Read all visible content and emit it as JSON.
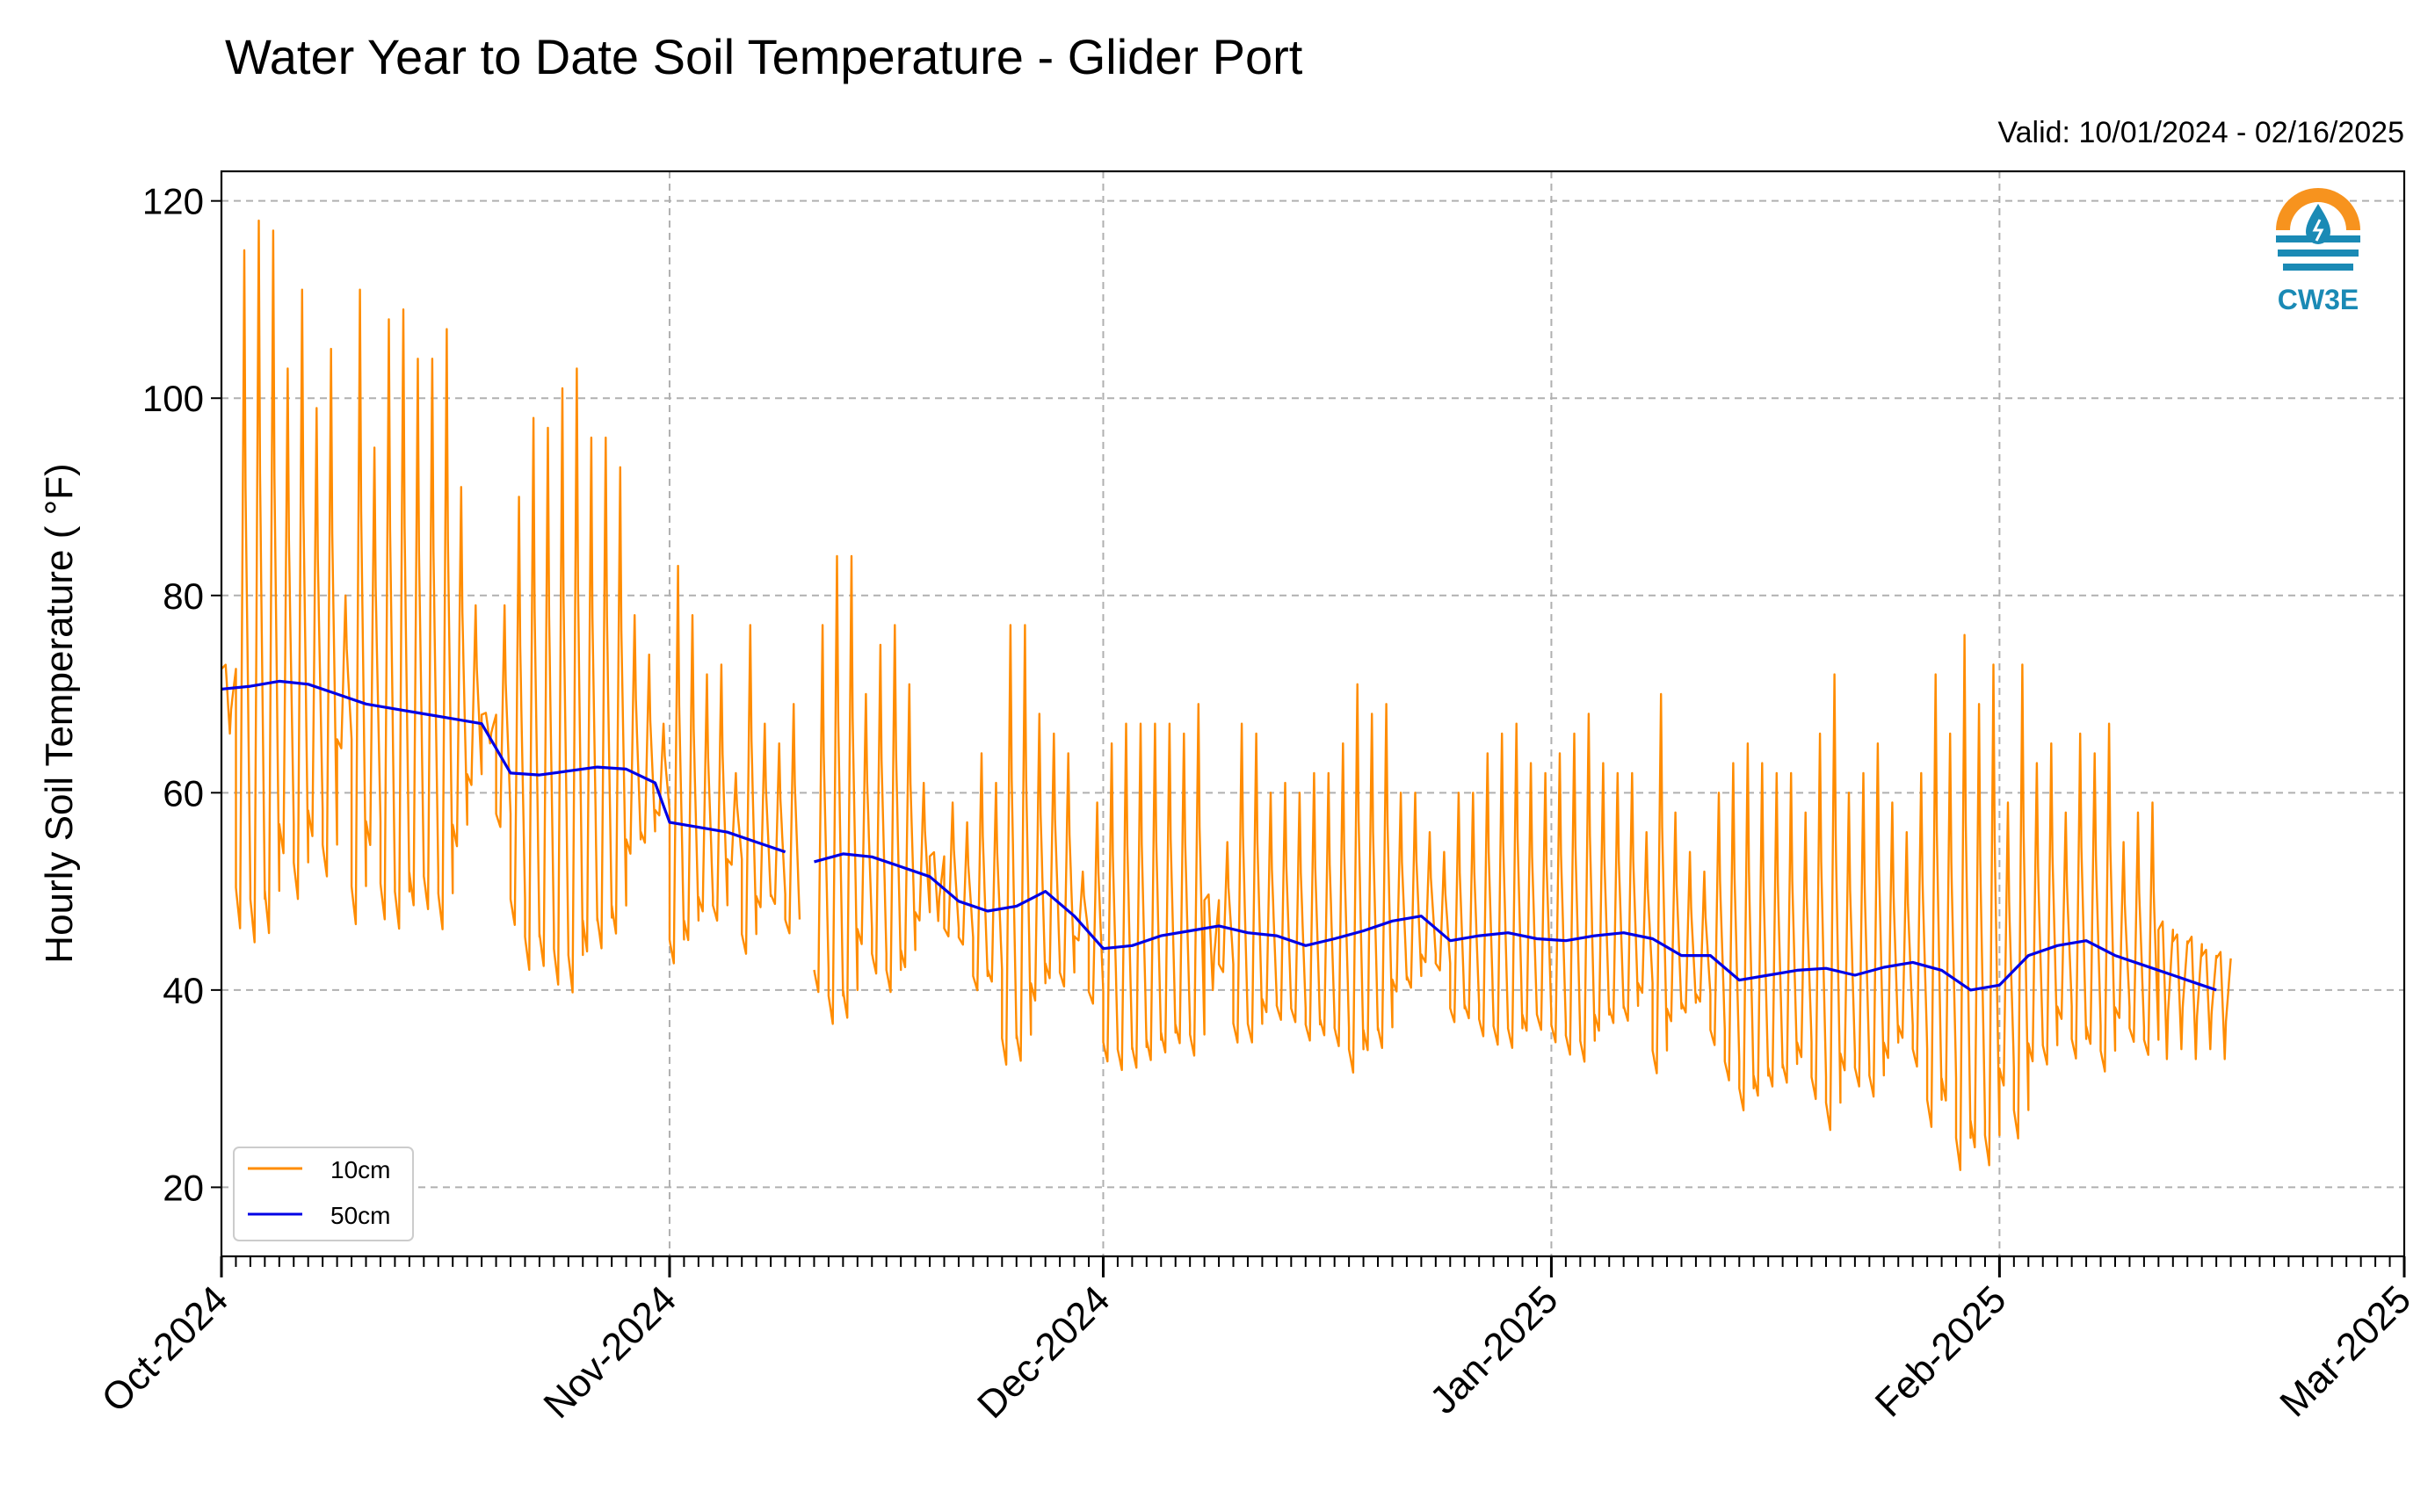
{
  "chart_data": {
    "type": "line",
    "title": "Water Year to Date Soil Temperature - Glider Port",
    "subtitle": "Valid: 10/01/2024 - 02/16/2025",
    "ylabel": "Hourly Soil Temperature ( °F)",
    "xlabel": "",
    "xlim": [
      "2024-10-01",
      "2025-03-01"
    ],
    "ylim": [
      13,
      123
    ],
    "y_ticks": [
      20,
      40,
      60,
      80,
      100,
      120
    ],
    "x_ticks": [
      {
        "date": "2024-10-01",
        "label": "Oct-2024"
      },
      {
        "date": "2024-11-01",
        "label": "Nov-2024"
      },
      {
        "date": "2024-12-01",
        "label": "Dec-2024"
      },
      {
        "date": "2025-01-01",
        "label": "Jan-2025"
      },
      {
        "date": "2025-02-01",
        "label": "Feb-2025"
      },
      {
        "date": "2025-03-01",
        "label": "Mar-2025"
      }
    ],
    "grid": true,
    "legend_position": "lower-left",
    "series": [
      {
        "name": "10cm",
        "color": "#ff8c00",
        "points": [
          [
            "2024-10-01",
            66
          ],
          [
            "2024-10-02",
            115
          ],
          [
            "2024-10-03",
            118
          ],
          [
            "2024-10-04",
            117
          ],
          [
            "2024-10-05",
            103
          ],
          [
            "2024-10-06",
            111
          ],
          [
            "2024-10-07",
            99
          ],
          [
            "2024-10-08",
            105
          ],
          [
            "2024-10-09",
            80
          ],
          [
            "2024-10-10",
            111
          ],
          [
            "2024-10-11",
            95
          ],
          [
            "2024-10-12",
            108
          ],
          [
            "2024-10-13",
            109
          ],
          [
            "2024-10-14",
            104
          ],
          [
            "2024-10-15",
            104
          ],
          [
            "2024-10-16",
            107
          ],
          [
            "2024-10-17",
            91
          ],
          [
            "2024-10-18",
            79
          ],
          [
            "2024-10-19",
            65
          ],
          [
            "2024-10-20",
            79
          ],
          [
            "2024-10-21",
            90
          ],
          [
            "2024-10-22",
            98
          ],
          [
            "2024-10-23",
            97
          ],
          [
            "2024-10-24",
            101
          ],
          [
            "2024-10-25",
            103
          ],
          [
            "2024-10-26",
            96
          ],
          [
            "2024-10-27",
            96
          ],
          [
            "2024-10-28",
            93
          ],
          [
            "2024-10-29",
            78
          ],
          [
            "2024-10-30",
            74
          ],
          [
            "2024-10-31",
            67
          ],
          [
            "2024-11-01",
            83
          ],
          [
            "2024-11-02",
            78
          ],
          [
            "2024-11-03",
            72
          ],
          [
            "2024-11-04",
            73
          ],
          [
            "2024-11-05",
            62
          ],
          [
            "2024-11-06",
            77
          ],
          [
            "2024-11-07",
            67
          ],
          [
            "2024-11-08",
            65
          ],
          [
            "2024-11-09",
            69
          ],
          [
            "2024-11-10",
            null
          ],
          [
            "2024-11-11",
            77
          ],
          [
            "2024-11-12",
            84
          ],
          [
            "2024-11-13",
            84
          ],
          [
            "2024-11-14",
            70
          ],
          [
            "2024-11-15",
            75
          ],
          [
            "2024-11-16",
            77
          ],
          [
            "2024-11-17",
            71
          ],
          [
            "2024-11-18",
            61
          ],
          [
            "2024-11-19",
            47
          ],
          [
            "2024-11-20",
            59
          ],
          [
            "2024-11-21",
            57
          ],
          [
            "2024-11-22",
            64
          ],
          [
            "2024-11-23",
            61
          ],
          [
            "2024-11-24",
            77
          ],
          [
            "2024-11-25",
            77
          ],
          [
            "2024-11-26",
            68
          ],
          [
            "2024-11-27",
            66
          ],
          [
            "2024-11-28",
            64
          ],
          [
            "2024-11-29",
            52
          ],
          [
            "2024-11-30",
            59
          ],
          [
            "2024-12-01",
            65
          ],
          [
            "2024-12-02",
            67
          ],
          [
            "2024-12-03",
            67
          ],
          [
            "2024-12-04",
            67
          ],
          [
            "2024-12-05",
            67
          ],
          [
            "2024-12-06",
            66
          ],
          [
            "2024-12-07",
            69
          ],
          [
            "2024-12-08",
            40
          ],
          [
            "2024-12-09",
            55
          ],
          [
            "2024-12-10",
            67
          ],
          [
            "2024-12-11",
            66
          ],
          [
            "2024-12-12",
            60
          ],
          [
            "2024-12-13",
            61
          ],
          [
            "2024-12-14",
            60
          ],
          [
            "2024-12-15",
            62
          ],
          [
            "2024-12-16",
            62
          ],
          [
            "2024-12-17",
            65
          ],
          [
            "2024-12-18",
            71
          ],
          [
            "2024-12-19",
            68
          ],
          [
            "2024-12-20",
            69
          ],
          [
            "2024-12-21",
            60
          ],
          [
            "2024-12-22",
            60
          ],
          [
            "2024-12-23",
            56
          ],
          [
            "2024-12-24",
            54
          ],
          [
            "2024-12-25",
            60
          ],
          [
            "2024-12-26",
            60
          ],
          [
            "2024-12-27",
            64
          ],
          [
            "2024-12-28",
            66
          ],
          [
            "2024-12-29",
            67
          ],
          [
            "2024-12-30",
            63
          ],
          [
            "2024-12-31",
            62
          ],
          [
            "2025-01-01",
            64
          ],
          [
            "2025-01-02",
            66
          ],
          [
            "2025-01-03",
            68
          ],
          [
            "2025-01-04",
            63
          ],
          [
            "2025-01-05",
            62
          ],
          [
            "2025-01-06",
            62
          ],
          [
            "2025-01-07",
            56
          ],
          [
            "2025-01-08",
            70
          ],
          [
            "2025-01-09",
            58
          ],
          [
            "2025-01-10",
            54
          ],
          [
            "2025-01-11",
            52
          ],
          [
            "2025-01-12",
            60
          ],
          [
            "2025-01-13",
            63
          ],
          [
            "2025-01-14",
            65
          ],
          [
            "2025-01-15",
            63
          ],
          [
            "2025-01-16",
            62
          ],
          [
            "2025-01-17",
            62
          ],
          [
            "2025-01-18",
            58
          ],
          [
            "2025-01-19",
            66
          ],
          [
            "2025-01-20",
            72
          ],
          [
            "2025-01-21",
            60
          ],
          [
            "2025-01-22",
            62
          ],
          [
            "2025-01-23",
            65
          ],
          [
            "2025-01-24",
            59
          ],
          [
            "2025-01-25",
            56
          ],
          [
            "2025-01-26",
            62
          ],
          [
            "2025-01-27",
            72
          ],
          [
            "2025-01-28",
            66
          ],
          [
            "2025-01-29",
            76
          ],
          [
            "2025-01-30",
            69
          ],
          [
            "2025-01-31",
            73
          ],
          [
            "2025-02-01",
            59
          ],
          [
            "2025-02-02",
            73
          ],
          [
            "2025-02-03",
            63
          ],
          [
            "2025-02-04",
            65
          ],
          [
            "2025-02-05",
            58
          ],
          [
            "2025-02-06",
            66
          ],
          [
            "2025-02-07",
            64
          ],
          [
            "2025-02-08",
            67
          ],
          [
            "2025-02-09",
            55
          ],
          [
            "2025-02-10",
            58
          ],
          [
            "2025-02-11",
            59
          ],
          [
            "2025-02-12",
            33
          ],
          [
            "2025-02-13",
            34
          ],
          [
            "2025-02-14",
            33
          ],
          [
            "2025-02-15",
            34
          ],
          [
            "2025-02-16",
            33
          ]
        ]
      },
      {
        "name": "50cm",
        "color": "#0000e6",
        "points": [
          [
            "2024-10-01",
            70.5
          ],
          [
            "2024-10-03",
            70.8
          ],
          [
            "2024-10-05",
            71.3
          ],
          [
            "2024-10-07",
            71.0
          ],
          [
            "2024-10-09",
            70.0
          ],
          [
            "2024-10-11",
            69.0
          ],
          [
            "2024-10-13",
            68.5
          ],
          [
            "2024-10-15",
            68.0
          ],
          [
            "2024-10-17",
            67.5
          ],
          [
            "2024-10-19",
            67.0
          ],
          [
            "2024-10-20",
            64.5
          ],
          [
            "2024-10-21",
            62.0
          ],
          [
            "2024-10-23",
            61.8
          ],
          [
            "2024-10-25",
            62.2
          ],
          [
            "2024-10-27",
            62.6
          ],
          [
            "2024-10-29",
            62.4
          ],
          [
            "2024-10-31",
            61.0
          ],
          [
            "2024-11-01",
            57.0
          ],
          [
            "2024-11-03",
            56.5
          ],
          [
            "2024-11-05",
            56.0
          ],
          [
            "2024-11-07",
            55.0
          ],
          [
            "2024-11-09",
            54.0
          ],
          [
            "2024-11-10",
            null
          ],
          [
            "2024-11-11",
            53.0
          ],
          [
            "2024-11-13",
            53.8
          ],
          [
            "2024-11-15",
            53.5
          ],
          [
            "2024-11-17",
            52.5
          ],
          [
            "2024-11-19",
            51.5
          ],
          [
            "2024-11-21",
            49.0
          ],
          [
            "2024-11-23",
            48.0
          ],
          [
            "2024-11-25",
            48.5
          ],
          [
            "2024-11-27",
            50.0
          ],
          [
            "2024-11-29",
            47.5
          ],
          [
            "2024-12-01",
            44.2
          ],
          [
            "2024-12-03",
            44.5
          ],
          [
            "2024-12-05",
            45.5
          ],
          [
            "2024-12-07",
            46.0
          ],
          [
            "2024-12-09",
            46.5
          ],
          [
            "2024-12-11",
            45.8
          ],
          [
            "2024-12-13",
            45.5
          ],
          [
            "2024-12-15",
            44.5
          ],
          [
            "2024-12-17",
            45.2
          ],
          [
            "2024-12-19",
            46.0
          ],
          [
            "2024-12-21",
            47.0
          ],
          [
            "2024-12-23",
            47.5
          ],
          [
            "2024-12-25",
            45.0
          ],
          [
            "2024-12-27",
            45.5
          ],
          [
            "2024-12-29",
            45.8
          ],
          [
            "2024-12-31",
            45.2
          ],
          [
            "2025-01-02",
            45.0
          ],
          [
            "2025-01-04",
            45.5
          ],
          [
            "2025-01-06",
            45.8
          ],
          [
            "2025-01-08",
            45.2
          ],
          [
            "2025-01-10",
            43.5
          ],
          [
            "2025-01-12",
            43.5
          ],
          [
            "2025-01-14",
            41.0
          ],
          [
            "2025-01-16",
            41.5
          ],
          [
            "2025-01-18",
            42.0
          ],
          [
            "2025-01-20",
            42.2
          ],
          [
            "2025-01-22",
            41.5
          ],
          [
            "2025-01-24",
            42.3
          ],
          [
            "2025-01-26",
            42.8
          ],
          [
            "2025-01-28",
            42.0
          ],
          [
            "2025-01-30",
            40.0
          ],
          [
            "2025-02-01",
            40.5
          ],
          [
            "2025-02-03",
            43.5
          ],
          [
            "2025-02-05",
            44.5
          ],
          [
            "2025-02-07",
            45.0
          ],
          [
            "2025-02-09",
            43.5
          ],
          [
            "2025-02-11",
            42.5
          ],
          [
            "2025-02-13",
            41.5
          ],
          [
            "2025-02-15",
            40.5
          ],
          [
            "2025-02-16",
            40.0
          ]
        ]
      }
    ]
  },
  "logo": {
    "text": "CW3E",
    "icon": "water-drop-logo-icon",
    "colors": [
      "#f7931e",
      "#1a8ab5"
    ]
  }
}
